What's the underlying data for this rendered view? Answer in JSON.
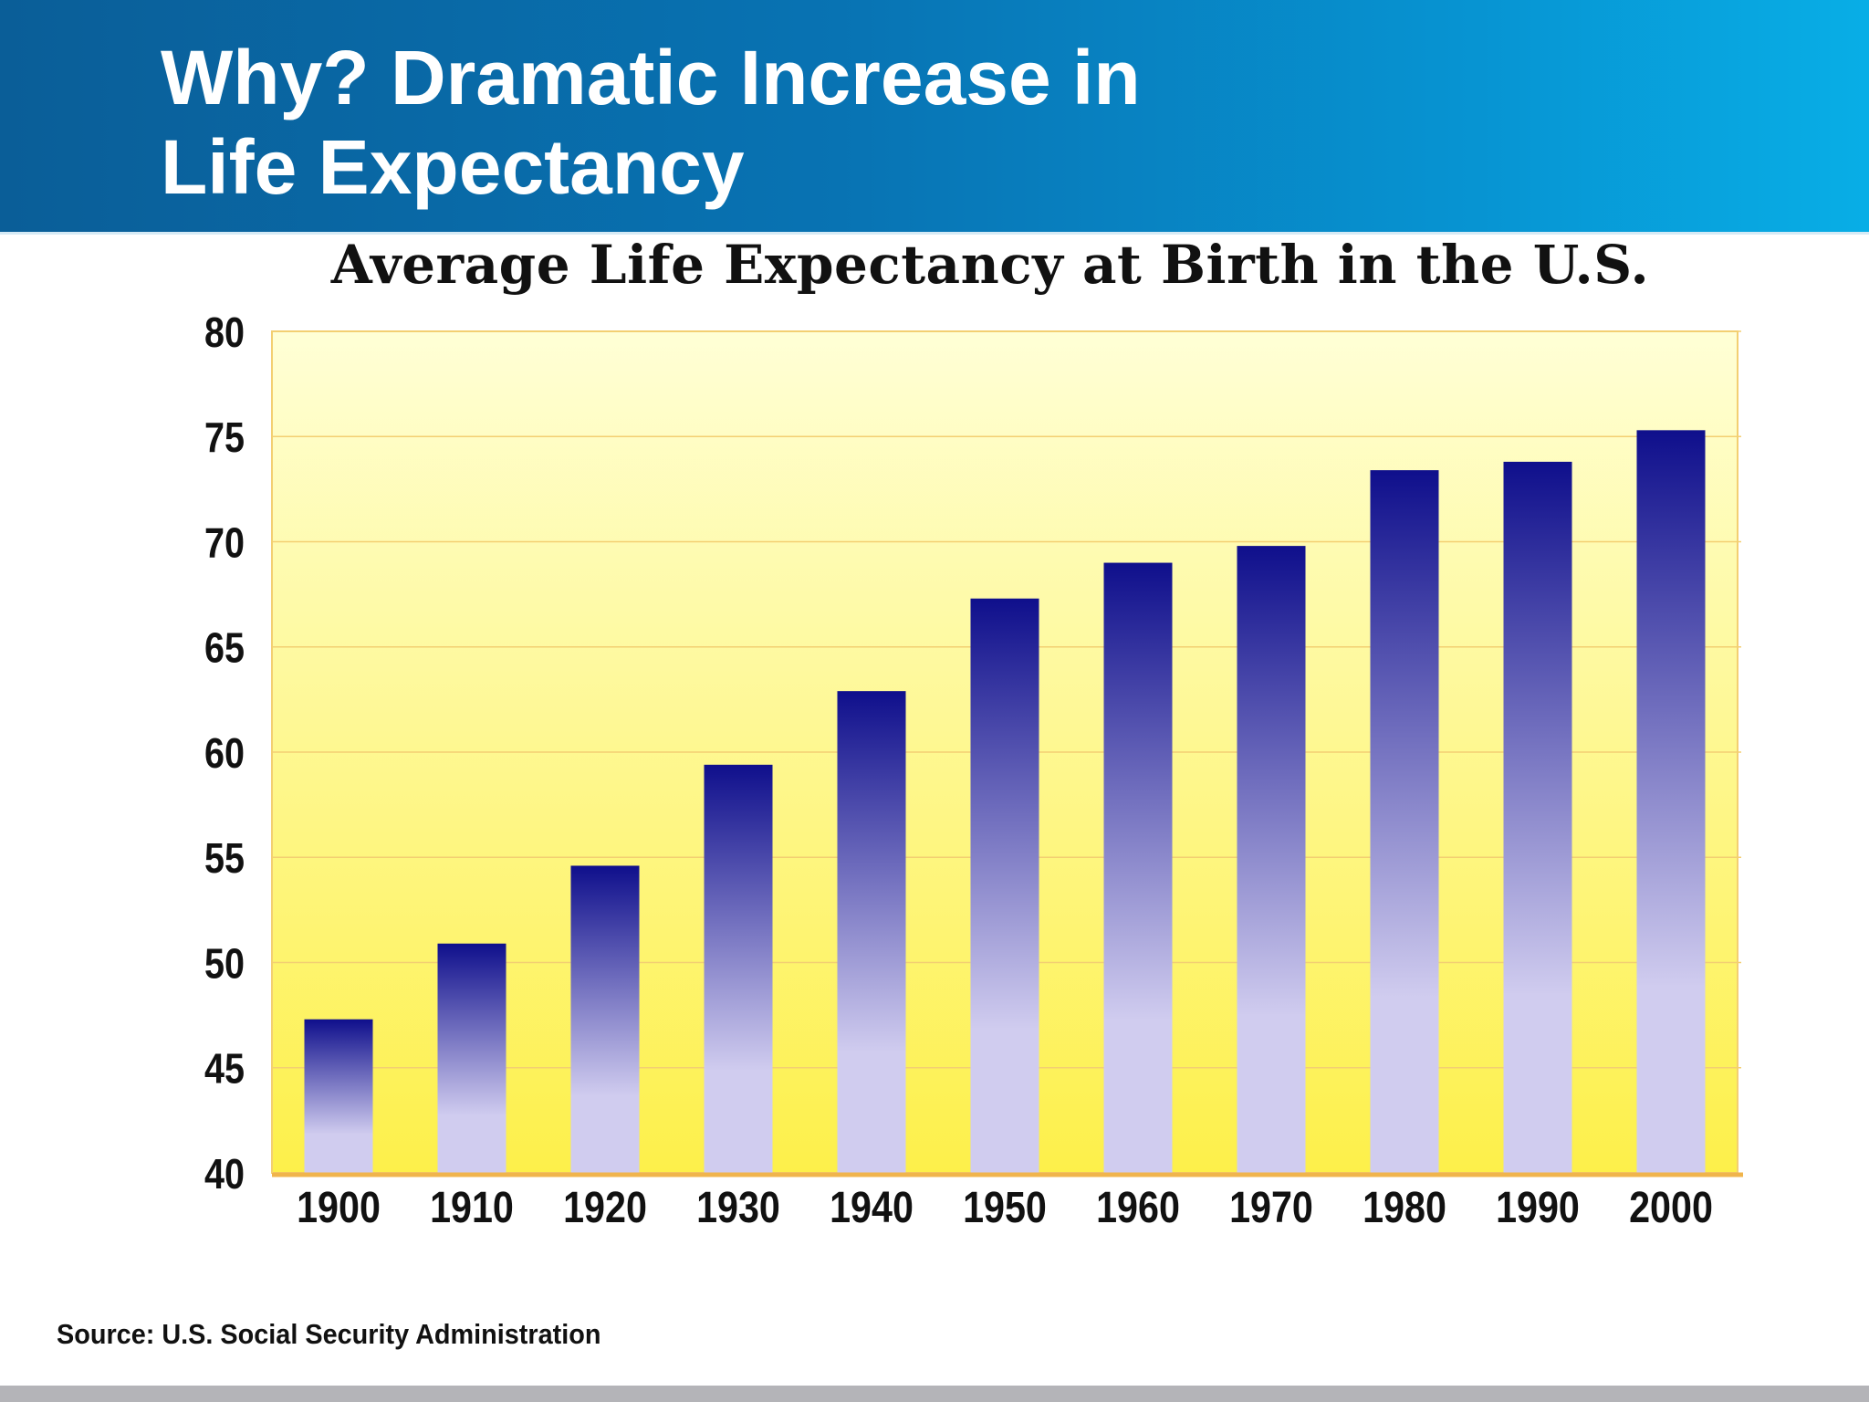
{
  "slide": {
    "title_line1": "Why?  Dramatic Increase in",
    "title_line2": "Life Expectancy",
    "source": "Source: U.S. Social Security Administration"
  },
  "colors": {
    "header_start": "#0a5e98",
    "header_end": "#08aee6",
    "plot_bg_top": "#ffffd6",
    "plot_bg_bottom": "#fdf04a",
    "bar_top": "#0f0f8c",
    "bar_bottom": "#d0ccef",
    "gridline": "#f3cf72",
    "axis": "#f0b44c"
  },
  "chart_data": {
    "type": "bar",
    "title": "Average Life Expectancy at Birth in the U.S.",
    "xlabel": "",
    "ylabel": "",
    "categories": [
      "1900",
      "1910",
      "1920",
      "1930",
      "1940",
      "1950",
      "1960",
      "1970",
      "1980",
      "1990",
      "2000"
    ],
    "values": [
      47.3,
      50.9,
      54.6,
      59.4,
      62.9,
      67.3,
      69.0,
      69.8,
      73.4,
      73.8,
      75.3
    ],
    "ylim": [
      40,
      80
    ],
    "yticks": [
      40,
      45,
      50,
      55,
      60,
      65,
      70,
      75,
      80
    ],
    "grid": true,
    "legend": "none"
  }
}
